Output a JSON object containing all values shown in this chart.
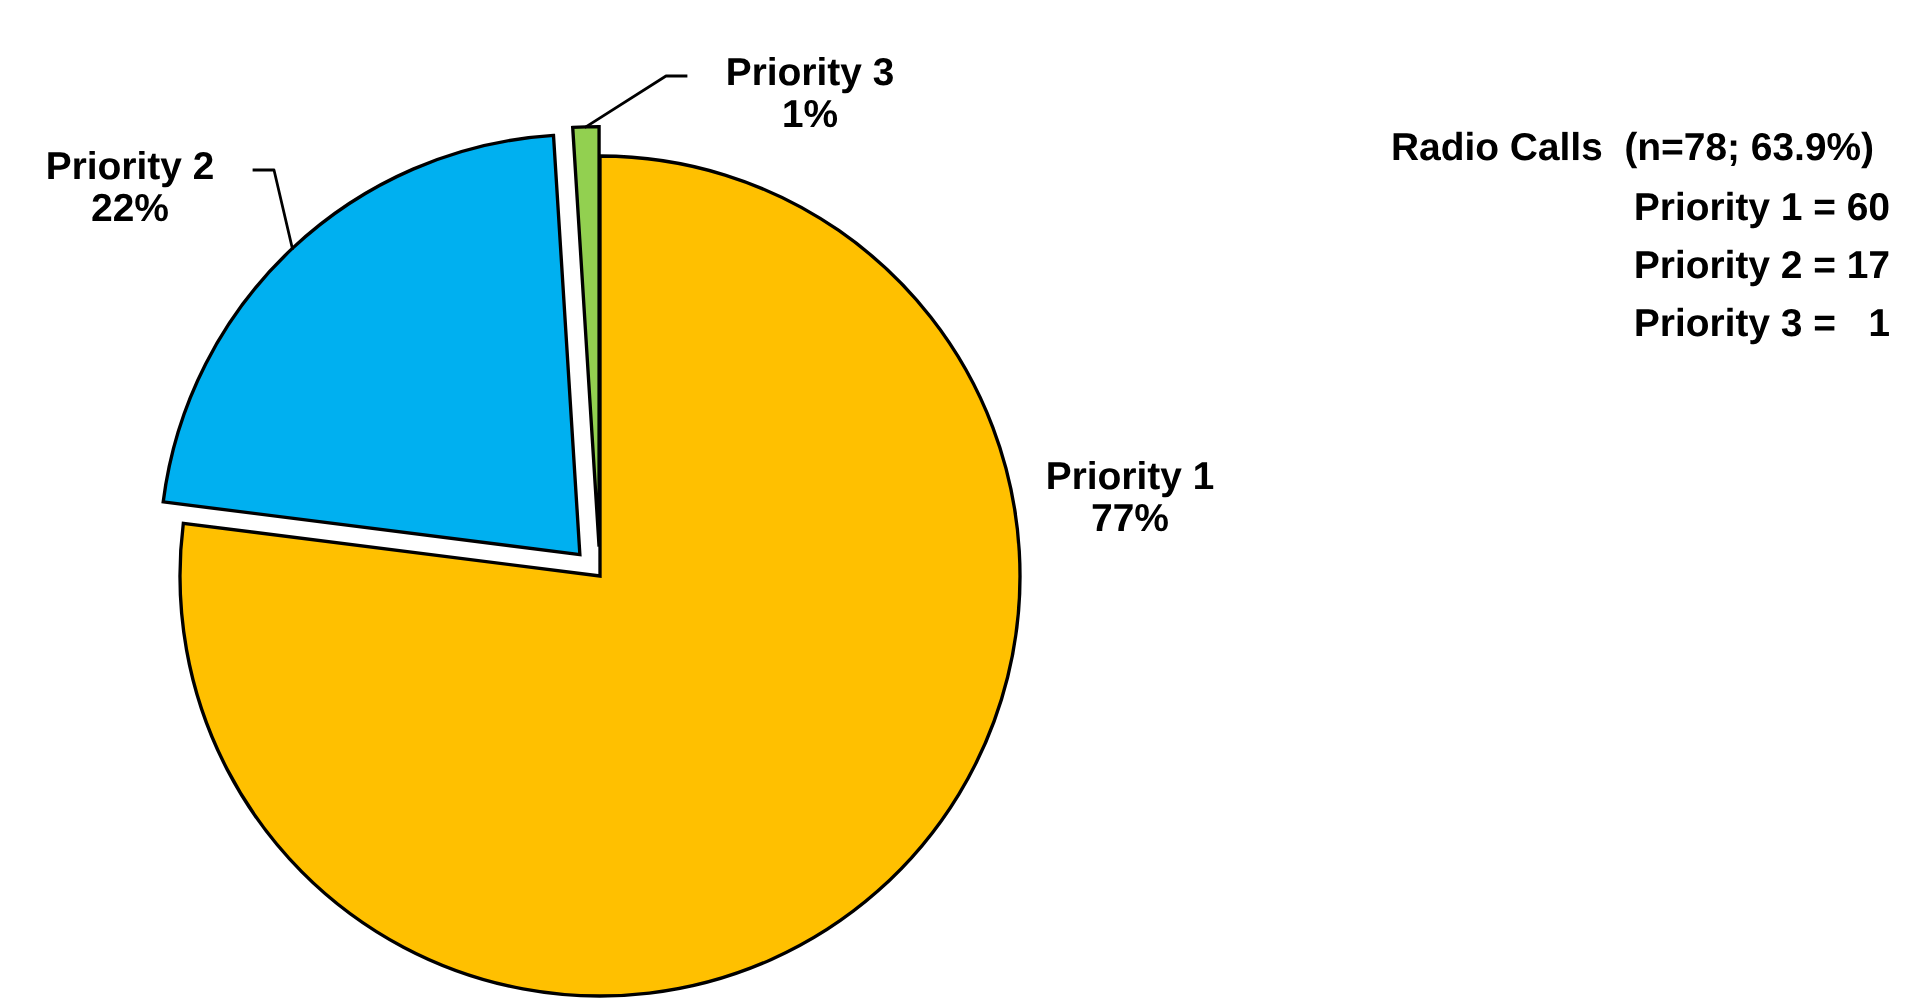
{
  "chart_data": {
    "type": "pie",
    "categories": [
      "Priority 1",
      "Priority 2",
      "Priority 3"
    ],
    "values": [
      77,
      22,
      1
    ],
    "value_labels": [
      "77%",
      "22%",
      "1%"
    ],
    "colors": [
      "#ffc000",
      "#00b0f0",
      "#92d050"
    ],
    "legend": false,
    "annotations": [
      "Radio Calls  (n=78; 63.9%)",
      "Priority 1 = 60",
      "Priority 2 = 17",
      "Priority 3 =   1"
    ]
  }
}
